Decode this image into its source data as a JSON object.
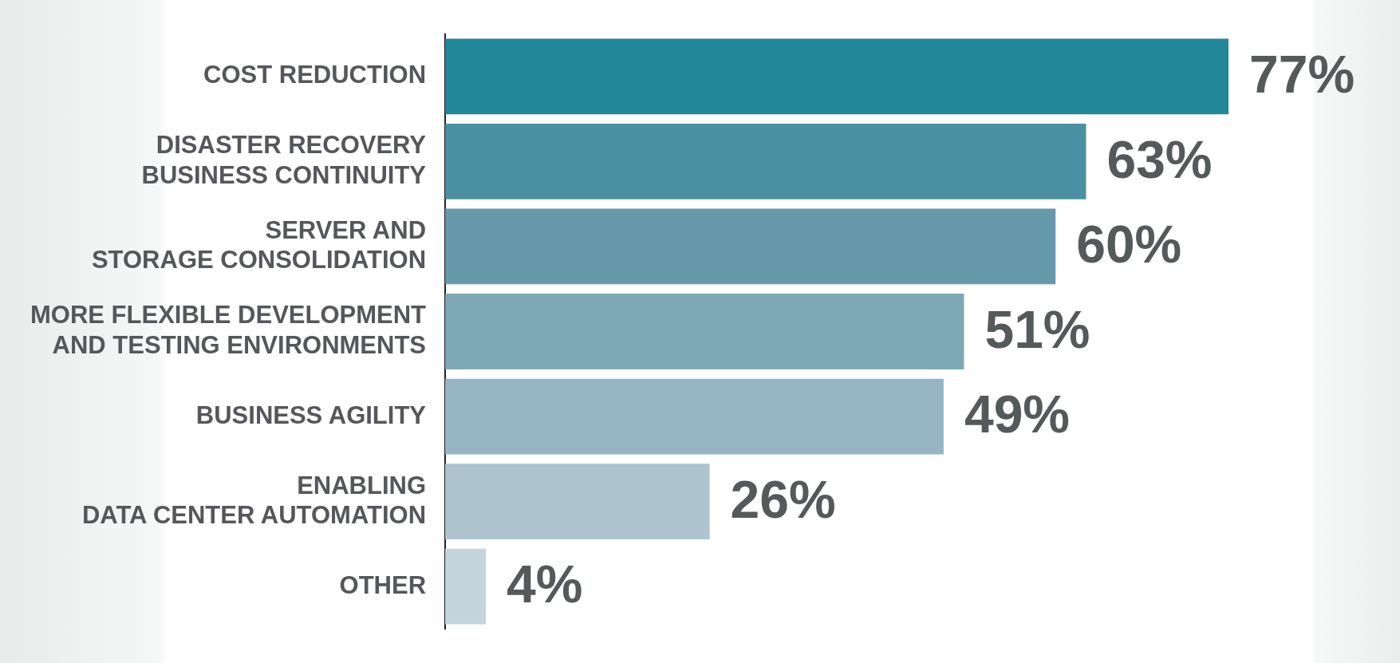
{
  "chart_data": {
    "type": "bar",
    "orientation": "horizontal",
    "categories": [
      "COST REDUCTION",
      "DISASTER RECOVERY\nBUSINESS CONTINUITY",
      "SERVER AND\nSTORAGE CONSOLIDATION",
      "MORE FLEXIBLE DEVELOPMENT\nAND TESTING ENVIRONMENTS",
      "BUSINESS AGILITY",
      "ENABLING\nDATA CENTER AUTOMATION",
      "OTHER"
    ],
    "values": [
      77,
      63,
      60,
      51,
      49,
      26,
      4
    ],
    "colors": [
      "#23879a",
      "#4a90a2",
      "#6699aa",
      "#7ea8b6",
      "#95b5c2",
      "#adc4ce",
      "#c4d4dc"
    ],
    "value_labels": [
      "77%",
      "63%",
      "60%",
      "51%",
      "49%",
      "26%",
      "4%"
    ],
    "legend": false
  }
}
